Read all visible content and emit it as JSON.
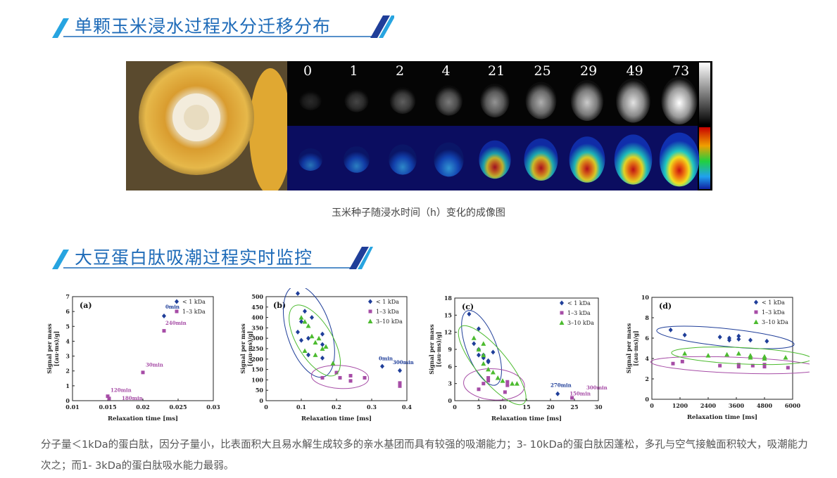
{
  "section1": {
    "title": "单颗玉米浸水过程水分迁移分布"
  },
  "figure1": {
    "time_labels": [
      "0",
      "1",
      "2",
      "4",
      "21",
      "25",
      "29",
      "49",
      "73"
    ],
    "caption": "玉米种子随浸水时间（h）变化的成像图"
  },
  "section2": {
    "title": "大豆蛋白肽吸潮过程实时监控"
  },
  "colors": {
    "brand_blue": "#1e6bb8",
    "light_blue": "#27a4e0",
    "navy": "#1f3e99",
    "magenta": "#a64ca6",
    "green": "#4cbb2f"
  },
  "chart_data": [
    {
      "type": "scatter",
      "panel": "(a)",
      "xlabel": "Relaxation time [ms]",
      "ylabel": "Signal per mass [(au·ms)/g]",
      "xlim": [
        0.01,
        0.03
      ],
      "ylim": [
        0,
        7
      ],
      "xticks": [
        "0.01",
        "0.015",
        "0.02",
        "0.025",
        "0.03"
      ],
      "yticks": [
        "0",
        "1",
        "2",
        "3",
        "4",
        "5",
        "6",
        "7"
      ],
      "legend": [
        "< 1 kDa",
        "1–3 kDa"
      ],
      "series": [
        {
          "name": "< 1 kDa",
          "points": [
            [
              0.023,
              5.7
            ]
          ]
        },
        {
          "name": "1–3 kDa",
          "points": [
            [
              0.015,
              0.3
            ],
            [
              0.0152,
              0.15
            ],
            [
              0.02,
              1.9
            ],
            [
              0.023,
              4.7
            ]
          ]
        }
      ],
      "annotations": [
        {
          "text": "0min",
          "x": 0.0232,
          "y": 6.2,
          "series": "< 1 kDa"
        },
        {
          "text": "240min",
          "x": 0.0232,
          "y": 5.1,
          "series": "1–3 kDa"
        },
        {
          "text": "30min",
          "x": 0.0204,
          "y": 2.3,
          "series": "1–3 kDa"
        },
        {
          "text": "120min",
          "x": 0.0154,
          "y": 0.6,
          "series": "1–3 kDa"
        },
        {
          "text": "180min",
          "x": 0.017,
          "y": 0.05,
          "series": "1–3 kDa"
        }
      ]
    },
    {
      "type": "scatter",
      "panel": "(b)",
      "xlabel": "Relaxation time [ms]",
      "ylabel": "Signal per mass [(au·ms)/g]",
      "xlim": [
        0,
        0.4
      ],
      "ylim": [
        0,
        500
      ],
      "xticks": [
        "0",
        "0.1",
        "0.2",
        "0.3",
        "0.4"
      ],
      "yticks": [
        "0",
        "50",
        "100",
        "150",
        "200",
        "250",
        "300",
        "350",
        "400",
        "450",
        "500"
      ],
      "legend": [
        "< 1 kDa",
        "1–3 kDa",
        "3–10 kDa"
      ],
      "series": [
        {
          "name": "< 1 kDa",
          "points": [
            [
              0.09,
              515
            ],
            [
              0.11,
              430
            ],
            [
              0.13,
              400
            ],
            [
              0.1,
              380
            ],
            [
              0.16,
              320
            ],
            [
              0.12,
              300
            ],
            [
              0.16,
              270
            ],
            [
              0.09,
              330
            ],
            [
              0.12,
              220
            ],
            [
              0.16,
              205
            ],
            [
              0.1,
              290
            ],
            [
              0.33,
              165
            ],
            [
              0.38,
              145
            ]
          ]
        },
        {
          "name": "1–3 kDa",
          "points": [
            [
              0.16,
              110
            ],
            [
              0.2,
              135
            ],
            [
              0.21,
              110
            ],
            [
              0.24,
              120
            ],
            [
              0.24,
              95
            ],
            [
              0.28,
              110
            ],
            [
              0.38,
              85
            ],
            [
              0.38,
              70
            ]
          ]
        },
        {
          "name": "3–10 kDa",
          "points": [
            [
              0.1,
              400
            ],
            [
              0.11,
              380
            ],
            [
              0.12,
              360
            ],
            [
              0.13,
              310
            ],
            [
              0.14,
              280
            ],
            [
              0.15,
              300
            ],
            [
              0.17,
              260
            ],
            [
              0.19,
              180
            ],
            [
              0.11,
              240
            ],
            [
              0.14,
              220
            ],
            [
              0.16,
              250
            ]
          ]
        }
      ],
      "annotations": [
        {
          "text": "0min",
          "x": 0.32,
          "y": 195,
          "series": "< 1 kDa"
        },
        {
          "text": "300min",
          "x": 0.36,
          "y": 175,
          "series": "< 1 kDa"
        }
      ]
    },
    {
      "type": "scatter",
      "panel": "(c)",
      "xlabel": "Relaxation time [ms]",
      "ylabel": "Signal per mass [(au·ms)/g]",
      "xlim": [
        0,
        30
      ],
      "ylim": [
        0,
        18
      ],
      "xticks": [
        "0",
        "5",
        "10",
        "15",
        "20",
        "25",
        "30"
      ],
      "yticks": [
        "0",
        "3",
        "6",
        "9",
        "12",
        "15",
        "18"
      ],
      "legend": [
        "< 1 kDa",
        "1–3 kDa",
        "3–10 kDa"
      ],
      "series": [
        {
          "name": "< 1 kDa",
          "points": [
            [
              3,
              15.2
            ],
            [
              5,
              12.6
            ],
            [
              4,
              10
            ],
            [
              5,
              9
            ],
            [
              5,
              8
            ],
            [
              6,
              8
            ],
            [
              7,
              7
            ],
            [
              8,
              8.5
            ],
            [
              6,
              7.5
            ],
            [
              7,
              6.8
            ],
            [
              21.5,
              1.2
            ]
          ]
        },
        {
          "name": "1–3 kDa",
          "points": [
            [
              5,
              2
            ],
            [
              6,
              3
            ],
            [
              7,
              3.5
            ],
            [
              7,
              4
            ],
            [
              10.5,
              1.5
            ],
            [
              11,
              2.7
            ],
            [
              11,
              3.3
            ],
            [
              24.5,
              0.5
            ]
          ]
        },
        {
          "name": "3–10 kDa",
          "points": [
            [
              4,
              11
            ],
            [
              5,
              9
            ],
            [
              6,
              8
            ],
            [
              6,
              6.5
            ],
            [
              7,
              5.5
            ],
            [
              8,
              5
            ],
            [
              9,
              4
            ],
            [
              10,
              3.5
            ],
            [
              12,
              3
            ],
            [
              13,
              3
            ],
            [
              6,
              10
            ]
          ]
        }
      ],
      "annotations": [
        {
          "text": "270min",
          "x": 20,
          "y": 2.4,
          "series": "< 1 kDa"
        },
        {
          "text": "150min",
          "x": 24,
          "y": 0.9,
          "series": "1–3 kDa"
        },
        {
          "text": "300min",
          "x": 27.5,
          "y": 2.0,
          "series": "1–3 kDa"
        }
      ]
    },
    {
      "type": "scatter",
      "panel": "(d)",
      "xlabel": "Relaxation time [ms]",
      "ylabel": "Signal per mass [(au·ms)/g]",
      "xlim": [
        0,
        6000
      ],
      "ylim": [
        0,
        10
      ],
      "xticks": [
        "0",
        "1200",
        "2400",
        "3600",
        "4800",
        "6000"
      ],
      "yticks": [
        "0",
        "2",
        "4",
        "6",
        "8",
        "10"
      ],
      "legend": [
        "< 1 kDa",
        "1–3 kDa",
        "3–10 kDa"
      ],
      "series": [
        {
          "name": "< 1 kDa",
          "points": [
            [
              800,
              6.8
            ],
            [
              1400,
              6.3
            ],
            [
              2900,
              6.1
            ],
            [
              3300,
              6.0
            ],
            [
              3300,
              5.8
            ],
            [
              3700,
              6.2
            ],
            [
              3700,
              5.9
            ],
            [
              4200,
              5.8
            ],
            [
              4900,
              5.7
            ]
          ]
        },
        {
          "name": "1–3 kDa",
          "points": [
            [
              900,
              3.5
            ],
            [
              1300,
              3.7
            ],
            [
              2900,
              3.3
            ],
            [
              3700,
              3.4
            ],
            [
              3700,
              3.2
            ],
            [
              4300,
              3.3
            ],
            [
              4800,
              3.4
            ],
            [
              4800,
              3.2
            ],
            [
              5800,
              3.1
            ]
          ]
        },
        {
          "name": "3–10 kDa",
          "points": [
            [
              1400,
              4.5
            ],
            [
              2400,
              4.3
            ],
            [
              3200,
              4.4
            ],
            [
              3700,
              4.5
            ],
            [
              4200,
              4.1
            ],
            [
              4200,
              4.3
            ],
            [
              4800,
              4.2
            ],
            [
              4800,
              4.0
            ],
            [
              5700,
              4.1
            ]
          ]
        }
      ],
      "annotations": []
    }
  ],
  "description": "分子量＜1kDa的蛋白肽，因分子量小，比表面积大且易水解生成较多的亲水基团而具有较强的吸潮能力；3- 10kDa的蛋白肽因蓬松，多孔与空气接触面积较大，吸潮能力次之；而1- 3kDa的蛋白肽吸水能力最弱。"
}
